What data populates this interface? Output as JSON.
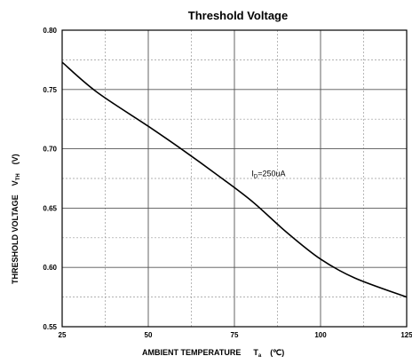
{
  "chart_data": {
    "type": "line",
    "title": "Threshold Voltage",
    "xlabel": {
      "main": "AMBIENT TEMPERATURE",
      "symbol": "T",
      "sub": "a",
      "unit": "(℃)"
    },
    "ylabel": {
      "main": "THRESHOLD VOLTAGE",
      "symbol": "V",
      "sub": "TH",
      "unit": "(V)"
    },
    "xlim": [
      25,
      125
    ],
    "ylim": [
      0.55,
      0.8
    ],
    "xticks": [
      25,
      50,
      75,
      100,
      125
    ],
    "yticks": [
      0.55,
      0.6,
      0.65,
      0.7,
      0.75,
      0.8
    ],
    "xtick_labels": [
      "25",
      "50",
      "75",
      "100",
      "125"
    ],
    "ytick_labels": [
      "0.55",
      "0.60",
      "0.65",
      "0.70",
      "0.75",
      "0.80"
    ],
    "grid": "dotted minor, solid major",
    "series": [
      {
        "x": [
          25,
          35,
          50,
          60,
          70,
          80,
          90,
          100,
          110,
          125
        ],
        "y": [
          0.773,
          0.748,
          0.719,
          0.699,
          0.678,
          0.656,
          0.63,
          0.607,
          0.591,
          0.575
        ]
      }
    ],
    "annotation": {
      "main": "I",
      "sub": "D",
      "rest": "=250uA",
      "x": 80,
      "y": 0.677
    }
  }
}
